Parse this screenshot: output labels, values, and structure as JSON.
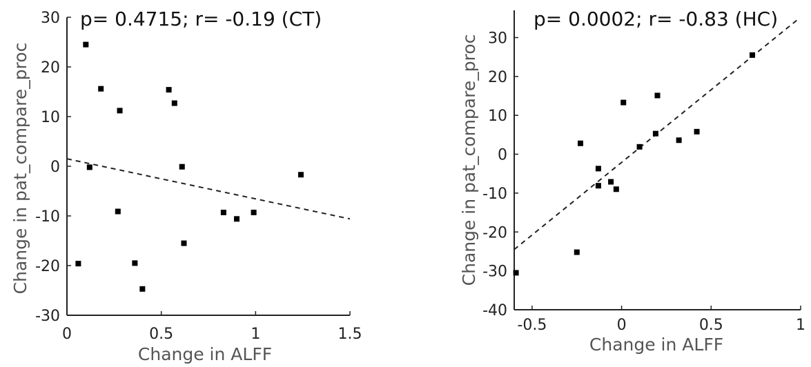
{
  "chart_data": [
    {
      "type": "scatter",
      "title": "p= 0.4715; r= -0.19 (CT)",
      "xlabel": "Change in ALFF",
      "ylabel": "Change in pat_compare_proc",
      "xlim": [
        0,
        1.5
      ],
      "ylim": [
        -30,
        30
      ],
      "xticks": [
        0,
        0.5,
        1,
        1.5
      ],
      "xtick_labels": [
        "0",
        "0.5",
        "1",
        "1.5"
      ],
      "yticks": [
        -30,
        -20,
        -10,
        0,
        10,
        20,
        30
      ],
      "ytick_labels": [
        "-30",
        "-20",
        "-10",
        "0",
        "10",
        "20",
        "30"
      ],
      "grid": false,
      "points": [
        {
          "x": 0.1,
          "y": 24.5
        },
        {
          "x": 0.18,
          "y": 15.6
        },
        {
          "x": 0.28,
          "y": 11.2
        },
        {
          "x": 0.12,
          "y": -0.2
        },
        {
          "x": 0.54,
          "y": 15.4
        },
        {
          "x": 0.57,
          "y": 12.7
        },
        {
          "x": 0.61,
          "y": -0.1
        },
        {
          "x": 1.24,
          "y": -1.7
        },
        {
          "x": 0.27,
          "y": -9.1
        },
        {
          "x": 0.83,
          "y": -9.3
        },
        {
          "x": 0.9,
          "y": -10.6
        },
        {
          "x": 0.99,
          "y": -9.3
        },
        {
          "x": 0.62,
          "y": -15.5
        },
        {
          "x": 0.06,
          "y": -19.6
        },
        {
          "x": 0.36,
          "y": -19.5
        },
        {
          "x": 0.4,
          "y": -24.7
        }
      ],
      "fit_line": {
        "x": [
          0,
          1.5
        ],
        "y": [
          1.5,
          -10.6
        ]
      }
    },
    {
      "type": "scatter",
      "title": "p= 0.0002; r= -0.83 (HC)",
      "xlabel": "Change in ALFF",
      "ylabel": "Change in pat_compare_proc",
      "xlim": [
        -0.6,
        1
      ],
      "ylim": [
        -40,
        37
      ],
      "xticks": [
        -0.5,
        0,
        0.5,
        1
      ],
      "xtick_labels": [
        "-0.5",
        "0",
        "0.5",
        "1"
      ],
      "yticks": [
        -40,
        -30,
        -20,
        -10,
        0,
        10,
        20,
        30
      ],
      "ytick_labels": [
        "-40",
        "-30",
        "-20",
        "-10",
        "0",
        "10",
        "20",
        "30"
      ],
      "grid": false,
      "points": [
        {
          "x": 0.73,
          "y": 25.5
        },
        {
          "x": 0.2,
          "y": 15.1
        },
        {
          "x": 0.01,
          "y": 13.3
        },
        {
          "x": -0.23,
          "y": 2.8
        },
        {
          "x": 0.42,
          "y": 5.8
        },
        {
          "x": 0.19,
          "y": 5.3
        },
        {
          "x": 0.32,
          "y": 3.6
        },
        {
          "x": 0.1,
          "y": 1.9
        },
        {
          "x": -0.13,
          "y": -3.7
        },
        {
          "x": -0.13,
          "y": -8.1
        },
        {
          "x": -0.06,
          "y": -7.1
        },
        {
          "x": -0.03,
          "y": -9.0
        },
        {
          "x": -0.25,
          "y": -25.2
        },
        {
          "x": -0.59,
          "y": -30.5
        }
      ],
      "fit_line": {
        "x": [
          -0.6,
          0.98
        ],
        "y": [
          -24.5,
          34.5
        ]
      }
    }
  ]
}
